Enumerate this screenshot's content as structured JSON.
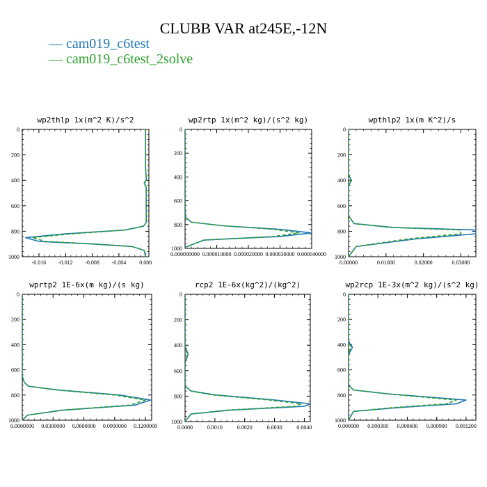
{
  "figure": {
    "title": "CLUBB VAR at245E,-12N",
    "legend": [
      {
        "label": "— cam019_c6test",
        "color": "#1f77b4"
      },
      {
        "label": "— cam019_c6test_2solve",
        "color": "#2ca02c"
      }
    ]
  },
  "colors": {
    "solid": "#1f77b4",
    "dashed": "#2ca02c"
  },
  "chart_data": [
    {
      "type": "line",
      "title": "wp2thlp  1x(m^2 K)/s^2",
      "xlim": [
        -0.0185,
        0.0005
      ],
      "ylim": [
        1000,
        0
      ],
      "xticks": [
        -0.016,
        -0.012,
        -0.008,
        -0.004,
        0.0
      ],
      "xtick_labels": [
        "-0.016",
        "-0.012",
        "-0.008",
        "-0.004",
        "0.000"
      ],
      "yticks": [
        0,
        200,
        400,
        600,
        800,
        1000
      ],
      "ytick_labels": [
        "0",
        "200",
        "400",
        "600",
        "800",
        "1000"
      ],
      "series": [
        {
          "name": "cam019_c6test",
          "style": "solid",
          "x": [
            0.0,
            0.0,
            0.0001,
            0.0001,
            -0.0002,
            0.0001,
            0.0001,
            0.0001,
            -0.0003,
            -0.003,
            -0.012,
            -0.018,
            -0.016,
            -0.008,
            -0.002,
            -0.0002,
            0.0
          ],
          "y": [
            0,
            300,
            380,
            400,
            420,
            460,
            600,
            730,
            760,
            790,
            820,
            850,
            880,
            900,
            920,
            950,
            1000
          ]
        },
        {
          "name": "cam019_c6test_2solve",
          "style": "dashed",
          "x": [
            0.0,
            0.0,
            0.0001,
            0.0001,
            -0.0001,
            0.0001,
            0.0001,
            0.0001,
            -0.0003,
            -0.003,
            -0.011,
            -0.017,
            -0.015,
            -0.0075,
            -0.002,
            -0.0002,
            0.0
          ],
          "y": [
            0,
            300,
            380,
            400,
            420,
            460,
            600,
            730,
            760,
            790,
            820,
            850,
            880,
            900,
            920,
            950,
            1000
          ]
        }
      ]
    },
    {
      "type": "line",
      "title": "wp2rtp  1x(m^2 kg)/(s^2 kg)",
      "xlim": [
        0.0,
        4e-05
      ],
      "ylim": [
        1000,
        0
      ],
      "xticks": [
        0.0,
        1e-05,
        2e-05,
        3e-05,
        4e-05
      ],
      "xtick_labels": [
        "0.000000000",
        "0.000010000",
        "0.000020000",
        "0.000030000",
        "0.000040000"
      ],
      "yticks": [
        0,
        200,
        400,
        600,
        800,
        1000
      ],
      "ytick_labels": [
        "0",
        "200",
        "400",
        "600",
        "800",
        "1000"
      ],
      "series": [
        {
          "name": "cam019_c6test",
          "style": "solid",
          "x": [
            0.0,
            0.0,
            0.0,
            2e-07,
            2e-06,
            1.2e-05,
            3e-05,
            4e-05,
            3e-05,
            6e-06,
            4e-06,
            2e-07
          ],
          "y": [
            0,
            500,
            680,
            740,
            780,
            810,
            840,
            870,
            900,
            930,
            950,
            990
          ]
        },
        {
          "name": "cam019_c6test_2solve",
          "style": "dashed",
          "x": [
            0.0,
            0.0,
            0.0,
            2e-07,
            2e-06,
            1.2e-05,
            2.8e-05,
            3.6e-05,
            2.8e-05,
            6e-06,
            4e-06,
            2e-07
          ],
          "y": [
            0,
            500,
            680,
            740,
            780,
            810,
            840,
            870,
            900,
            930,
            950,
            990
          ]
        }
      ]
    },
    {
      "type": "line",
      "title": "wpthlp2  1x(m K^2)/s",
      "xlim": [
        0.0,
        0.034
      ],
      "ylim": [
        1000,
        0
      ],
      "xticks": [
        0.0,
        0.01,
        0.02,
        0.03
      ],
      "xtick_labels": [
        "0.00000",
        "0.01000",
        "0.02000",
        "0.03000"
      ],
      "yticks": [
        0,
        200,
        400,
        600,
        800,
        1000
      ],
      "ytick_labels": [
        "0",
        "200",
        "400",
        "600",
        "800",
        "1000"
      ],
      "series": [
        {
          "name": "cam019_c6test",
          "style": "solid",
          "x": [
            0.0,
            0.0,
            0.0004,
            0.0008,
            0.0004,
            0.0,
            0.0,
            0.0015,
            0.012,
            0.034,
            0.034,
            0.018,
            0.002,
            0.0
          ],
          "y": [
            0,
            350,
            380,
            400,
            420,
            450,
            680,
            740,
            770,
            790,
            820,
            860,
            920,
            1000
          ]
        },
        {
          "name": "cam019_c6test_2solve",
          "style": "dashed",
          "x": [
            0.0,
            0.0,
            0.0003,
            0.0007,
            0.0003,
            0.0,
            0.0,
            0.0015,
            0.011,
            0.03,
            0.03,
            0.016,
            0.002,
            0.0
          ],
          "y": [
            0,
            350,
            380,
            400,
            420,
            450,
            680,
            740,
            770,
            790,
            820,
            860,
            920,
            1000
          ]
        }
      ]
    },
    {
      "type": "line",
      "title": "wprtp2  1E-6x(m kg)/(s kg)",
      "xlim": [
        0.0,
        0.126
      ],
      "ylim": [
        1000,
        0
      ],
      "xticks": [
        0.0,
        0.03,
        0.06,
        0.09,
        0.12
      ],
      "xtick_labels": [
        "0.0000000",
        "0.0300000",
        "0.0600000",
        "0.0900000",
        "0.1200000"
      ],
      "yticks": [
        0,
        200,
        400,
        600,
        800,
        1000
      ],
      "ytick_labels": [
        "0",
        "200",
        "400",
        "600",
        "800",
        "1000"
      ],
      "series": [
        {
          "name": "cam019_c6test",
          "style": "solid",
          "x": [
            0.0,
            0.0,
            0.002,
            0.006,
            0.035,
            0.095,
            0.125,
            0.11,
            0.04,
            0.005,
            0.0
          ],
          "y": [
            0,
            650,
            700,
            730,
            760,
            800,
            840,
            880,
            920,
            960,
            1000
          ]
        },
        {
          "name": "cam019_c6test_2solve",
          "style": "dashed",
          "x": [
            0.0,
            0.0,
            0.002,
            0.006,
            0.033,
            0.09,
            0.12,
            0.105,
            0.038,
            0.005,
            0.0
          ],
          "y": [
            0,
            650,
            700,
            730,
            760,
            800,
            840,
            880,
            920,
            960,
            1000
          ]
        }
      ]
    },
    {
      "type": "line",
      "title": "rcp2  1E-6x(kg^2)/(kg^2)",
      "xlim": [
        0.0,
        0.0042
      ],
      "ylim": [
        1000,
        0
      ],
      "xticks": [
        0.0,
        0.001,
        0.002,
        0.003,
        0.004
      ],
      "xtick_labels": [
        "0.0000",
        "0.0010",
        "0.0020",
        "0.0030",
        "0.0040"
      ],
      "yticks": [
        0,
        200,
        400,
        600,
        800,
        1000
      ],
      "ytick_labels": [
        "0",
        "200",
        "400",
        "600",
        "800",
        "1000"
      ],
      "series": [
        {
          "name": "cam019_c6test",
          "style": "solid",
          "x": [
            0.0,
            0.0,
            5e-05,
            0.0001,
            5e-05,
            0.0,
            0.0,
            0.0002,
            0.001,
            0.003,
            0.0042,
            0.004,
            0.0015,
            0.0002,
            0.0
          ],
          "y": [
            0,
            400,
            440,
            470,
            510,
            540,
            720,
            760,
            790,
            830,
            860,
            880,
            910,
            940,
            1000
          ]
        },
        {
          "name": "cam019_c6test_2solve",
          "style": "dashed",
          "x": [
            0.0,
            0.0,
            4e-05,
            8e-05,
            4e-05,
            0.0,
            0.0,
            0.0002,
            0.0009,
            0.0028,
            0.0039,
            0.0037,
            0.0014,
            0.0002,
            0.0
          ],
          "y": [
            0,
            400,
            440,
            470,
            510,
            540,
            720,
            760,
            790,
            830,
            860,
            880,
            910,
            940,
            1000
          ]
        }
      ]
    },
    {
      "type": "line",
      "title": "wp2rcp  1E-3x(m^2 kg)/(s^2 kg)",
      "xlim": [
        0.0,
        0.0013
      ],
      "ylim": [
        1000,
        0
      ],
      "xticks": [
        0.0,
        0.0003,
        0.0006,
        0.0009,
        0.0012
      ],
      "xtick_labels": [
        "0.000000",
        "0.000300",
        "0.000600",
        "0.000900",
        "0.001200"
      ],
      "yticks": [
        0,
        200,
        400,
        600,
        800,
        1000
      ],
      "ytick_labels": [
        "0",
        "200",
        "400",
        "600",
        "800",
        "1000"
      ],
      "series": [
        {
          "name": "cam019_c6test",
          "style": "solid",
          "x": [
            0.0,
            0.0,
            2e-05,
            4e-05,
            2e-05,
            0.0,
            0.0,
            5e-05,
            0.0004,
            0.0012,
            0.0011,
            0.0005,
            5e-05,
            0.0
          ],
          "y": [
            0,
            370,
            400,
            420,
            450,
            480,
            720,
            760,
            790,
            840,
            870,
            900,
            930,
            1000
          ]
        },
        {
          "name": "cam019_c6test_2solve",
          "style": "dashed",
          "x": [
            0.0,
            0.0,
            1e-05,
            3e-05,
            1e-05,
            0.0,
            0.0,
            5e-05,
            0.00038,
            0.0011,
            0.001,
            0.00045,
            5e-05,
            0.0
          ],
          "y": [
            0,
            370,
            400,
            420,
            450,
            480,
            720,
            760,
            790,
            840,
            870,
            900,
            930,
            1000
          ]
        }
      ]
    }
  ]
}
